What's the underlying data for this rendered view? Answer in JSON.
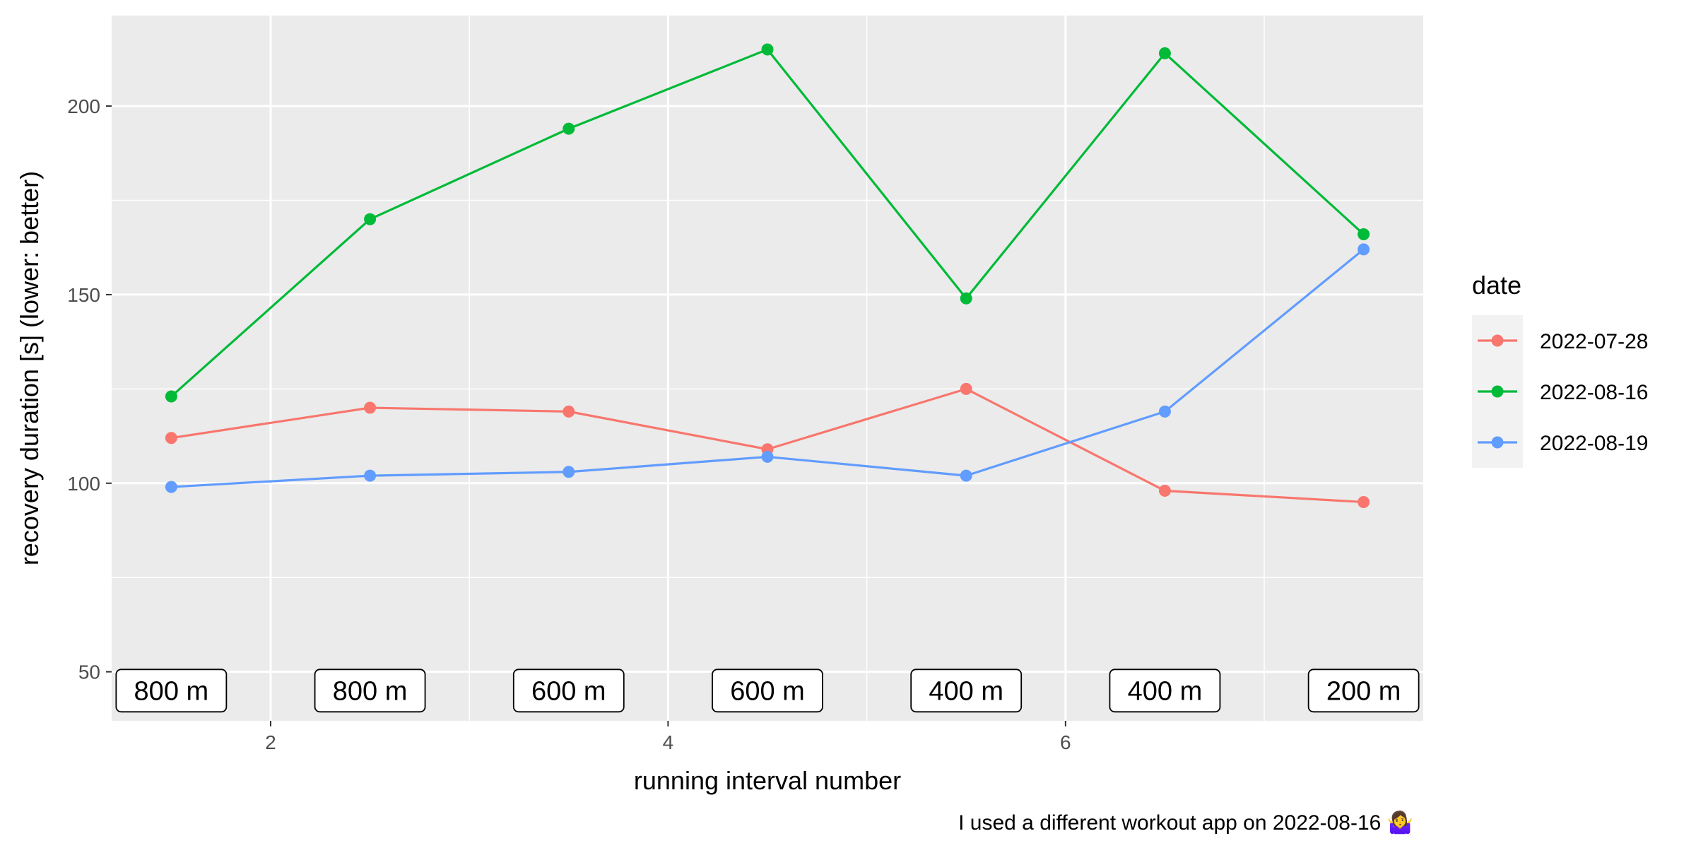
{
  "chart_data": {
    "type": "line",
    "title": "",
    "xlabel": "running interval number",
    "ylabel": "recovery duration [s] (lower: better)",
    "caption": "I used a different workout app on 2022-08-16 🤷‍♀️",
    "xlim": [
      1.2,
      7.8
    ],
    "ylim": [
      37,
      224
    ],
    "x_ticks": [
      2,
      4,
      6
    ],
    "x_tick_labels": [
      "2",
      "4",
      "6"
    ],
    "y_ticks": [
      50,
      100,
      150,
      200
    ],
    "y_tick_labels": [
      "50",
      "100",
      "150",
      "200"
    ],
    "grid": true,
    "legend": {
      "title": "date",
      "position": "right"
    },
    "x": [
      1.5,
      2.5,
      3.5,
      4.5,
      5.5,
      6.5,
      7.5
    ],
    "series": [
      {
        "name": "2022-07-28",
        "color": "#F8766D",
        "values": [
          112,
          120,
          119,
          109,
          125,
          98,
          95
        ]
      },
      {
        "name": "2022-08-16",
        "color": "#00BA38",
        "values": [
          123,
          170,
          194,
          215,
          149,
          214,
          166
        ]
      },
      {
        "name": "2022-08-19",
        "color": "#619CFF",
        "values": [
          99,
          102,
          103,
          107,
          102,
          119,
          162
        ]
      }
    ],
    "interval_labels": [
      {
        "x": 1.5,
        "text": "800 m"
      },
      {
        "x": 2.5,
        "text": "800 m"
      },
      {
        "x": 3.5,
        "text": "600 m"
      },
      {
        "x": 4.5,
        "text": "600 m"
      },
      {
        "x": 5.5,
        "text": "400 m"
      },
      {
        "x": 6.5,
        "text": "400 m"
      },
      {
        "x": 7.5,
        "text": "200 m"
      }
    ],
    "interval_label_y": 45
  }
}
